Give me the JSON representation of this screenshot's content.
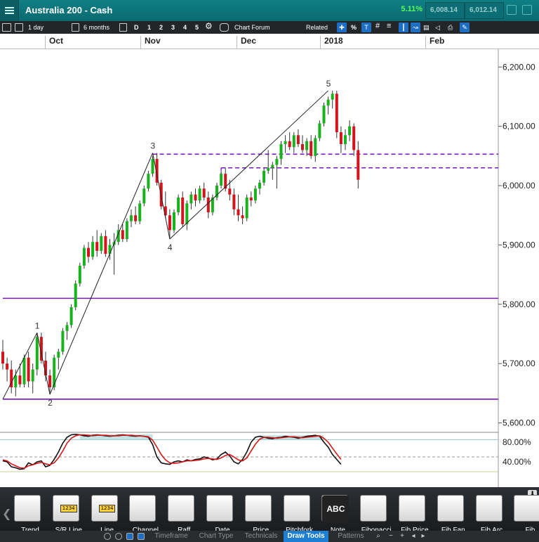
{
  "header": {
    "title": "Australia 200 - Cash",
    "change_pct": "5.11%",
    "sell_price": "6,008.14",
    "buy_price": "6,012.14"
  },
  "toolbar": {
    "interval": "1 day",
    "range": "6 months",
    "zoom_d": "D",
    "zoom_1": "1",
    "zoom_2": "2",
    "zoom_3": "3",
    "zoom_4": "4",
    "zoom_5": "5",
    "chart_forum": "Chart Forum",
    "related": "Related",
    "pct_symbol": "%"
  },
  "months": [
    "Oct",
    "Nov",
    "Dec",
    "2018",
    "Feb"
  ],
  "chart_data": {
    "type": "candlestick",
    "instrument": "Australia 200 - Cash",
    "price_axis": {
      "ticks": [
        "6,200.00",
        "6,100.00",
        "6,000.00",
        "5,900.00",
        "5,800.00",
        "5,700.00",
        "5,600.00"
      ],
      "tick_values": [
        6200,
        6100,
        6000,
        5900,
        5800,
        5700,
        5600
      ],
      "range": [
        5590,
        6230
      ]
    },
    "candles": [
      {
        "o": 5720,
        "h": 5740,
        "l": 5690,
        "c": 5700
      },
      {
        "o": 5700,
        "h": 5710,
        "l": 5670,
        "c": 5690
      },
      {
        "o": 5690,
        "h": 5705,
        "l": 5650,
        "c": 5660
      },
      {
        "o": 5660,
        "h": 5690,
        "l": 5645,
        "c": 5680
      },
      {
        "o": 5680,
        "h": 5700,
        "l": 5660,
        "c": 5665
      },
      {
        "o": 5665,
        "h": 5715,
        "l": 5660,
        "c": 5710
      },
      {
        "o": 5710,
        "h": 5720,
        "l": 5660,
        "c": 5670
      },
      {
        "o": 5670,
        "h": 5700,
        "l": 5650,
        "c": 5690
      },
      {
        "o": 5690,
        "h": 5750,
        "l": 5680,
        "c": 5745
      },
      {
        "o": 5745,
        "h": 5752,
        "l": 5700,
        "c": 5705
      },
      {
        "o": 5705,
        "h": 5720,
        "l": 5670,
        "c": 5680
      },
      {
        "o": 5680,
        "h": 5690,
        "l": 5648,
        "c": 5660
      },
      {
        "o": 5660,
        "h": 5715,
        "l": 5655,
        "c": 5710
      },
      {
        "o": 5710,
        "h": 5725,
        "l": 5690,
        "c": 5720
      },
      {
        "o": 5720,
        "h": 5760,
        "l": 5715,
        "c": 5755
      },
      {
        "o": 5755,
        "h": 5770,
        "l": 5740,
        "c": 5765
      },
      {
        "o": 5765,
        "h": 5800,
        "l": 5760,
        "c": 5795
      },
      {
        "o": 5795,
        "h": 5840,
        "l": 5790,
        "c": 5835
      },
      {
        "o": 5835,
        "h": 5870,
        "l": 5830,
        "c": 5865
      },
      {
        "o": 5865,
        "h": 5900,
        "l": 5860,
        "c": 5895
      },
      {
        "o": 5895,
        "h": 5905,
        "l": 5870,
        "c": 5880
      },
      {
        "o": 5880,
        "h": 5915,
        "l": 5875,
        "c": 5905
      },
      {
        "o": 5905,
        "h": 5925,
        "l": 5880,
        "c": 5890
      },
      {
        "o": 5890,
        "h": 5920,
        "l": 5885,
        "c": 5915
      },
      {
        "o": 5915,
        "h": 5925,
        "l": 5880,
        "c": 5885
      },
      {
        "o": 5885,
        "h": 5910,
        "l": 5875,
        "c": 5900
      },
      {
        "o": 5900,
        "h": 5920,
        "l": 5850,
        "c": 5905
      },
      {
        "o": 5905,
        "h": 5935,
        "l": 5900,
        "c": 5925
      },
      {
        "o": 5925,
        "h": 5935,
        "l": 5905,
        "c": 5910
      },
      {
        "o": 5910,
        "h": 5945,
        "l": 5905,
        "c": 5940
      },
      {
        "o": 5940,
        "h": 5960,
        "l": 5930,
        "c": 5950
      },
      {
        "o": 5950,
        "h": 5965,
        "l": 5935,
        "c": 5940
      },
      {
        "o": 5940,
        "h": 5975,
        "l": 5935,
        "c": 5970
      },
      {
        "o": 5970,
        "h": 6000,
        "l": 5965,
        "c": 5995
      },
      {
        "o": 5995,
        "h": 6025,
        "l": 5990,
        "c": 6020
      },
      {
        "o": 6020,
        "h": 6050,
        "l": 6015,
        "c": 6045
      },
      {
        "o": 6045,
        "h": 6055,
        "l": 6000,
        "c": 6005
      },
      {
        "o": 6005,
        "h": 6010,
        "l": 5960,
        "c": 5965
      },
      {
        "o": 5965,
        "h": 5990,
        "l": 5945,
        "c": 5950
      },
      {
        "o": 5950,
        "h": 5960,
        "l": 5910,
        "c": 5925
      },
      {
        "o": 5925,
        "h": 5960,
        "l": 5920,
        "c": 5955
      },
      {
        "o": 5955,
        "h": 5985,
        "l": 5950,
        "c": 5980
      },
      {
        "o": 5980,
        "h": 5990,
        "l": 5930,
        "c": 5935
      },
      {
        "o": 5935,
        "h": 5975,
        "l": 5925,
        "c": 5970
      },
      {
        "o": 5970,
        "h": 5990,
        "l": 5960,
        "c": 5985
      },
      {
        "o": 5985,
        "h": 5995,
        "l": 5965,
        "c": 5975
      },
      {
        "o": 5975,
        "h": 6000,
        "l": 5970,
        "c": 5995
      },
      {
        "o": 5995,
        "h": 6005,
        "l": 5975,
        "c": 5980
      },
      {
        "o": 5980,
        "h": 5990,
        "l": 5945,
        "c": 5955
      },
      {
        "o": 5955,
        "h": 5985,
        "l": 5950,
        "c": 5980
      },
      {
        "o": 5980,
        "h": 6005,
        "l": 5975,
        "c": 6000
      },
      {
        "o": 6000,
        "h": 6025,
        "l": 5995,
        "c": 6020
      },
      {
        "o": 6020,
        "h": 6030,
        "l": 5990,
        "c": 5995
      },
      {
        "o": 5995,
        "h": 6010,
        "l": 5975,
        "c": 5985
      },
      {
        "o": 5985,
        "h": 5995,
        "l": 5950,
        "c": 5960
      },
      {
        "o": 5960,
        "h": 5985,
        "l": 5940,
        "c": 5950
      },
      {
        "o": 5950,
        "h": 5965,
        "l": 5935,
        "c": 5945
      },
      {
        "o": 5945,
        "h": 5985,
        "l": 5940,
        "c": 5980
      },
      {
        "o": 5980,
        "h": 5990,
        "l": 5965,
        "c": 5975
      },
      {
        "o": 5975,
        "h": 6000,
        "l": 5970,
        "c": 5995
      },
      {
        "o": 5995,
        "h": 6010,
        "l": 5985,
        "c": 6005
      },
      {
        "o": 6005,
        "h": 6030,
        "l": 6000,
        "c": 6025
      },
      {
        "o": 6025,
        "h": 6060,
        "l": 6020,
        "c": 6030
      },
      {
        "o": 6030,
        "h": 6040,
        "l": 6010,
        "c": 6035
      },
      {
        "o": 6035,
        "h": 6050,
        "l": 5995,
        "c": 6045
      },
      {
        "o": 6045,
        "h": 6075,
        "l": 6035,
        "c": 6070
      },
      {
        "o": 6070,
        "h": 6085,
        "l": 6055,
        "c": 6075
      },
      {
        "o": 6075,
        "h": 6090,
        "l": 6060,
        "c": 6065
      },
      {
        "o": 6065,
        "h": 6090,
        "l": 6055,
        "c": 6085
      },
      {
        "o": 6085,
        "h": 6095,
        "l": 6065,
        "c": 6070
      },
      {
        "o": 6070,
        "h": 6085,
        "l": 6055,
        "c": 6060
      },
      {
        "o": 6060,
        "h": 6080,
        "l": 6050,
        "c": 6075
      },
      {
        "o": 6075,
        "h": 6085,
        "l": 6045,
        "c": 6050
      },
      {
        "o": 6050,
        "h": 6085,
        "l": 6040,
        "c": 6080
      },
      {
        "o": 6080,
        "h": 6110,
        "l": 6075,
        "c": 6105
      },
      {
        "o": 6105,
        "h": 6140,
        "l": 6100,
        "c": 6135
      },
      {
        "o": 6135,
        "h": 6150,
        "l": 6120,
        "c": 6145
      },
      {
        "o": 6145,
        "h": 6160,
        "l": 6130,
        "c": 6155
      },
      {
        "o": 6155,
        "h": 6160,
        "l": 6080,
        "c": 6090
      },
      {
        "o": 6090,
        "h": 6100,
        "l": 6055,
        "c": 6070
      },
      {
        "o": 6070,
        "h": 6095,
        "l": 6060,
        "c": 6085
      },
      {
        "o": 6085,
        "h": 6110,
        "l": 6075,
        "c": 6100
      },
      {
        "o": 6100,
        "h": 6105,
        "l": 6050,
        "c": 6060
      },
      {
        "o": 6060,
        "h": 6075,
        "l": 5995,
        "c": 6010
      }
    ],
    "wave_points": [
      {
        "label": "1",
        "i": 8,
        "price": 5752
      },
      {
        "label": "2",
        "i": 11,
        "price": 5648
      },
      {
        "label": "3",
        "i": 35,
        "price": 6055
      },
      {
        "label": "4",
        "i": 39,
        "price": 5910
      },
      {
        "label": "5",
        "i": 76,
        "price": 6160
      }
    ],
    "wave_start": {
      "i": 0,
      "price": 5640
    },
    "horizontal_lines": [
      {
        "price": 6053,
        "style": "dashed",
        "color": "#7a16c4",
        "from_index": 35
      },
      {
        "price": 6030,
        "style": "dashed",
        "color": "#7a16c4",
        "from_index": 51
      },
      {
        "price": 5810,
        "style": "solid",
        "color": "#7a16c4",
        "from_index": 0
      },
      {
        "price": 5640,
        "style": "solid",
        "color": "#7a16c4",
        "from_index": 0
      }
    ],
    "up_color": "#18b21c",
    "down_color": "#d4141c",
    "oscillator": {
      "ticks": [
        "80.00%",
        "40.00%"
      ],
      "tick_values": [
        80,
        40
      ],
      "range": [
        0,
        100
      ],
      "k": [
        42,
        40,
        30,
        28,
        25,
        26,
        38,
        34,
        40,
        42,
        30,
        33,
        45,
        60,
        78,
        90,
        95,
        96,
        95,
        93,
        92,
        94,
        95,
        94,
        93,
        92,
        93,
        94,
        95,
        94,
        93,
        92,
        93,
        92,
        90,
        75,
        50,
        38,
        36,
        35,
        40,
        42,
        40,
        44,
        42,
        45,
        46,
        50,
        48,
        44,
        46,
        55,
        60,
        52,
        40,
        36,
        45,
        60,
        80,
        90,
        92,
        90,
        88,
        87,
        89,
        90,
        92,
        91,
        90,
        88,
        90,
        92,
        93,
        94,
        92,
        80,
        70,
        55,
        45,
        35
      ],
      "d": [
        44,
        42,
        36,
        32,
        28,
        27,
        32,
        34,
        37,
        39,
        36,
        34,
        38,
        48,
        62,
        78,
        88,
        93,
        95,
        95,
        94,
        93,
        94,
        94,
        94,
        93,
        93,
        93,
        94,
        94,
        94,
        93,
        93,
        92,
        91,
        84,
        70,
        55,
        44,
        38,
        37,
        38,
        40,
        42,
        42,
        43,
        44,
        46,
        47,
        46,
        45,
        48,
        53,
        55,
        50,
        44,
        42,
        48,
        62,
        76,
        86,
        90,
        90,
        89,
        88,
        89,
        90,
        91,
        91,
        90,
        89,
        90,
        91,
        92,
        93,
        88,
        80,
        68,
        56,
        45
      ],
      "levels": [
        85,
        20
      ]
    }
  },
  "dock": {
    "tools": [
      "Trend",
      "S/R Line",
      "Line",
      "Channel",
      "Raff",
      "Date",
      "Price",
      "Pitchfork",
      "Note",
      "Fibonacci",
      "Fib Price",
      "Fib Fan",
      "Fib Arc",
      "Fib"
    ],
    "sr_badge": "1234",
    "line_badge": "1234",
    "note_text": "ABC",
    "tabs": [
      "Timeframe",
      "Chart Type",
      "Technicals",
      "Draw Tools",
      "Patterns"
    ],
    "active_tab": "Draw Tools"
  }
}
